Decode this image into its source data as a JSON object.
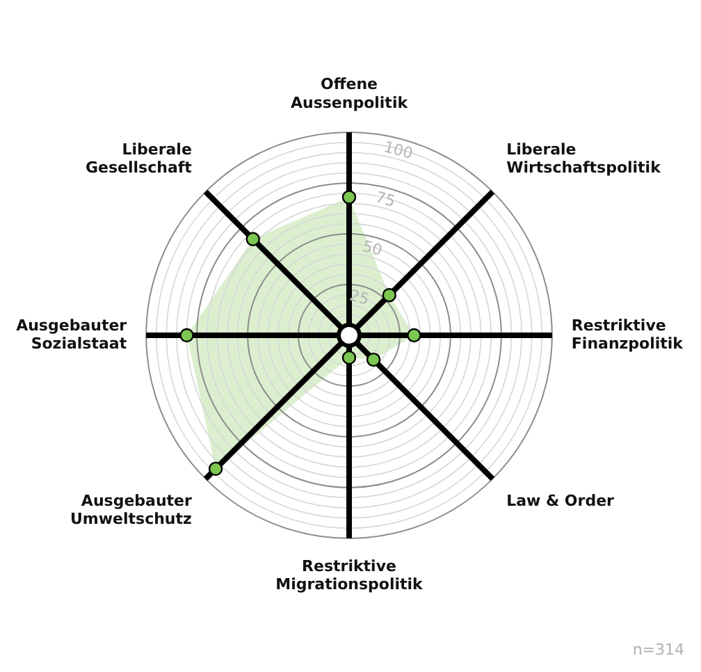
{
  "chart_data": {
    "type": "radar",
    "categories": [
      "Offene Aussenpolitik",
      "Liberale Wirtschaftspolitik",
      "Restriktive Finanzpolitik",
      "Law & Order",
      "Restriktive Migrationspolitik",
      "Ausgebauter Umweltschutz",
      "Ausgebauter Sozialstaat",
      "Liberale Gesellschaft"
    ],
    "series": [
      {
        "color": "#7cc651",
        "values": [
          68,
          28,
          32,
          17,
          11,
          93,
          80,
          67
        ]
      }
    ],
    "ylim": [
      0,
      100
    ],
    "yticks": [
      25,
      50,
      75,
      100
    ],
    "grid": true,
    "legend": false,
    "marker": "circle",
    "annotations": [
      "n=314"
    ]
  }
}
